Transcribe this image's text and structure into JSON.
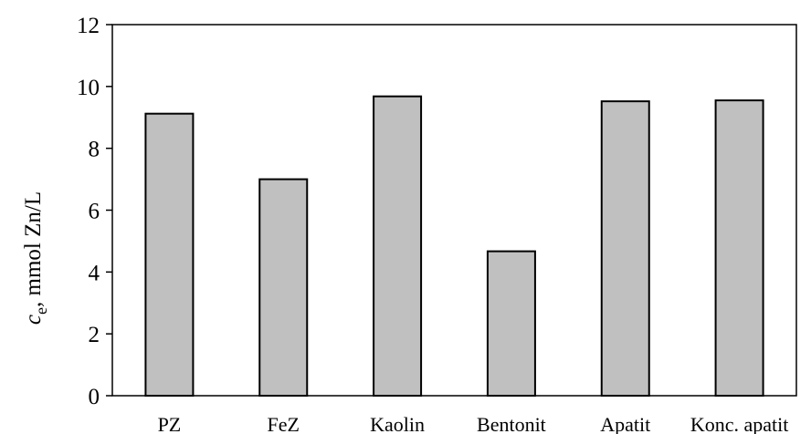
{
  "chart_data": {
    "type": "bar",
    "categories": [
      "PZ",
      "FeZ",
      "Kaolin",
      "Bentonit",
      "Apatit",
      "Konc. apatit"
    ],
    "values": [
      9.12,
      7.0,
      9.68,
      4.67,
      9.52,
      9.55
    ],
    "title": "",
    "xlabel": "",
    "ylabel": {
      "symbol": "c",
      "subscript": "e",
      "rest": ", mmol Zn/L"
    },
    "ylim": [
      0,
      12
    ],
    "yticks": [
      "0",
      "2",
      "4",
      "6",
      "8",
      "10",
      "12"
    ],
    "grid": false,
    "legend": "none",
    "colors": {
      "bar_fill": "#c0c0c0",
      "bar_stroke": "#000000",
      "axis": "#000000"
    }
  }
}
